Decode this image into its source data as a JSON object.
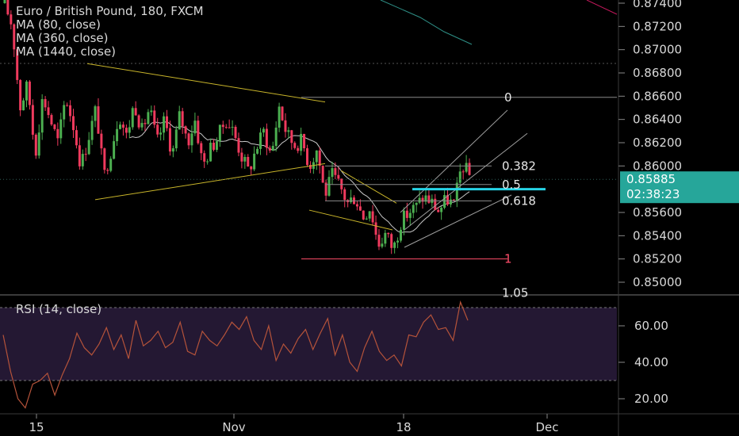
{
  "chart_data": {
    "type": "candlestick",
    "title": "Euro / British Pound, 180, FXCM",
    "symbol": "Euro / British Pound",
    "interval": "180",
    "exchange": "FXCM",
    "indicators": [
      "MA (80, close)",
      "MA (360, close)",
      "MA (1440, close)"
    ],
    "price_axis": {
      "ticks": [
        "0.87400",
        "0.87200",
        "0.87000",
        "0.86800",
        "0.86600",
        "0.86400",
        "0.86200",
        "0.86000",
        "0.85600",
        "0.85400",
        "0.85200",
        "0.85000"
      ],
      "range": [
        0.849,
        0.8743
      ]
    },
    "time_axis": {
      "ticks": [
        "15",
        "Nov",
        "18",
        "Dec"
      ]
    },
    "last_price": {
      "value": "0.85885",
      "countdown": "02:38:23",
      "color": "#26a69a"
    },
    "fibonacci": {
      "levels": [
        {
          "label": "0",
          "price": 0.8659
        },
        {
          "label": "0.382",
          "price": 0.86
        },
        {
          "label": "0.5",
          "price": 0.8584
        },
        {
          "label": "0.618",
          "price": 0.857
        },
        {
          "label": "1",
          "price": 0.852
        }
      ],
      "partial_label": "1.05",
      "color": "#ff4d6a"
    },
    "price_path": [
      0.874,
      0.872,
      0.865,
      0.867,
      0.861,
      0.866,
      0.864,
      0.862,
      0.866,
      0.8635,
      0.86,
      0.8625,
      0.865,
      0.859,
      0.8615,
      0.8645,
      0.8625,
      0.8655,
      0.863,
      0.865,
      0.862,
      0.864,
      0.861,
      0.8645,
      0.862,
      0.864,
      0.86,
      0.8615,
      0.8625,
      0.864,
      0.863,
      0.861,
      0.8595,
      0.8615,
      0.863,
      0.8608,
      0.8652,
      0.8628,
      0.8618,
      0.8622,
      0.86,
      0.8615,
      0.8575,
      0.8592,
      0.8582,
      0.8568,
      0.8574,
      0.8556,
      0.8565,
      0.8532,
      0.8542,
      0.8528,
      0.8552,
      0.856,
      0.8565,
      0.8574,
      0.8569,
      0.8561,
      0.8572,
      0.8566,
      0.8602,
      0.8592
    ],
    "rsi": {
      "title": "RSI (14, close)",
      "ticks": [
        "60.00",
        "40.00",
        "20.00"
      ],
      "range": [
        12,
        76
      ],
      "upper_band": 70,
      "lower_band": 30,
      "values": [
        55,
        35,
        20,
        15,
        28,
        30,
        34,
        22,
        33,
        42,
        56,
        48,
        44,
        50,
        59,
        47,
        55,
        42,
        63,
        49,
        52,
        57,
        48,
        51,
        62,
        46,
        44,
        57,
        52,
        49,
        55,
        62,
        58,
        65,
        52,
        47,
        60,
        41,
        50,
        45,
        53,
        58,
        47,
        56,
        64,
        44,
        55,
        40,
        35,
        48,
        57,
        46,
        41,
        44,
        38,
        55,
        54,
        62,
        66,
        58,
        59,
        52,
        73,
        63
      ]
    },
    "colors": {
      "up": "#4caf50",
      "down": "#ef3a5d"
    }
  }
}
